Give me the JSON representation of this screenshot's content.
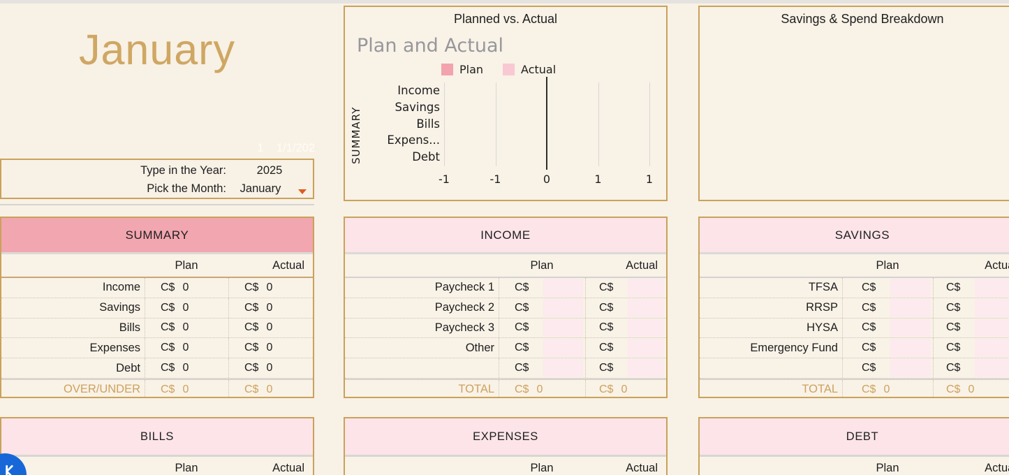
{
  "window": {
    "month_title": "January",
    "faint_date": "1 1/1/202"
  },
  "controls": {
    "year_label": "Type in the Year:",
    "year_value": "2025",
    "month_label": "Pick the Month:",
    "month_value": "January"
  },
  "tables": {
    "summary": {
      "title": "SUMMARY",
      "col_plan": "Plan",
      "col_actual": "Actual",
      "rows": [
        {
          "label": "Income",
          "plan_cur": "C$",
          "plan_val": "0",
          "act_cur": "C$",
          "act_val": "0"
        },
        {
          "label": "Savings",
          "plan_cur": "C$",
          "plan_val": "0",
          "act_cur": "C$",
          "act_val": "0"
        },
        {
          "label": "Bills",
          "plan_cur": "C$",
          "plan_val": "0",
          "act_cur": "C$",
          "act_val": "0"
        },
        {
          "label": "Expenses",
          "plan_cur": "C$",
          "plan_val": "0",
          "act_cur": "C$",
          "act_val": "0"
        },
        {
          "label": "Debt",
          "plan_cur": "C$",
          "plan_val": "0",
          "act_cur": "C$",
          "act_val": "0"
        }
      ],
      "footer_rows": [
        {
          "label": "OVER/UNDER",
          "plan_cur": "C$",
          "plan_val": "0",
          "act_cur": "C$",
          "act_val": "0"
        }
      ]
    },
    "income": {
      "title": "INCOME",
      "col_plan": "Plan",
      "col_actual": "Actual",
      "rows": [
        {
          "label": "Paycheck 1",
          "plan_cur": "C$",
          "plan_val": "",
          "act_cur": "C$",
          "act_val": ""
        },
        {
          "label": "Paycheck 2",
          "plan_cur": "C$",
          "plan_val": "",
          "act_cur": "C$",
          "act_val": ""
        },
        {
          "label": "Paycheck 3",
          "plan_cur": "C$",
          "plan_val": "",
          "act_cur": "C$",
          "act_val": ""
        },
        {
          "label": "Other",
          "plan_cur": "C$",
          "plan_val": "",
          "act_cur": "C$",
          "act_val": ""
        },
        {
          "label": "",
          "plan_cur": "C$",
          "plan_val": "",
          "act_cur": "C$",
          "act_val": ""
        }
      ],
      "footer_rows": [
        {
          "label": "TOTAL",
          "plan_cur": "C$",
          "plan_val": "0",
          "act_cur": "C$",
          "act_val": "0"
        }
      ]
    },
    "savings": {
      "title": "SAVINGS",
      "col_plan": "Plan",
      "col_actual": "Actual",
      "rows": [
        {
          "label": "TFSA",
          "plan_cur": "C$",
          "plan_val": "",
          "act_cur": "C$",
          "act_val": ""
        },
        {
          "label": "RRSP",
          "plan_cur": "C$",
          "plan_val": "",
          "act_cur": "C$",
          "act_val": ""
        },
        {
          "label": "HYSA",
          "plan_cur": "C$",
          "plan_val": "",
          "act_cur": "C$",
          "act_val": ""
        },
        {
          "label": "Emergency Fund",
          "plan_cur": "C$",
          "plan_val": "",
          "act_cur": "C$",
          "act_val": ""
        },
        {
          "label": "",
          "plan_cur": "C$",
          "plan_val": "",
          "act_cur": "C$",
          "act_val": ""
        }
      ],
      "footer_rows": [
        {
          "label": "TOTAL",
          "plan_cur": "C$",
          "plan_val": "0",
          "act_cur": "C$",
          "act_val": "0"
        }
      ]
    },
    "bills": {
      "title": "BILLS",
      "col_plan": "Plan",
      "col_actual": "Actual"
    },
    "expenses": {
      "title": "EXPENSES",
      "col_plan": "Plan",
      "col_actual": "Actual"
    },
    "debt": {
      "title": "DEBT",
      "col_plan": "Plan",
      "col_actual": "Actual"
    }
  },
  "chart_data": [
    {
      "type": "bar",
      "orientation": "horizontal",
      "title": "Planned vs. Actual",
      "chart_title": "Plan and Actual",
      "axis_title": "SUMMARY",
      "categories": [
        "Income",
        "Savings",
        "Bills",
        "Expenses",
        "Debt"
      ],
      "category_labels_displayed": [
        "Income",
        "Savings",
        "Bills",
        "Expens...",
        "Debt"
      ],
      "series": [
        {
          "name": "Plan",
          "color": "#f2a3ae",
          "values": [
            0,
            0,
            0,
            0,
            0
          ]
        },
        {
          "name": "Actual",
          "color": "#f8c9d3",
          "values": [
            0,
            0,
            0,
            0,
            0
          ]
        }
      ],
      "x_tick_labels": [
        "-1",
        "-1",
        "0",
        "1",
        "1"
      ],
      "xlim": [
        -1,
        1
      ],
      "legend_position": "top",
      "grid": "vertical"
    },
    {
      "type": "empty",
      "title": "Savings & Spend Breakdown",
      "series": [],
      "note": "chart area empty - no data plotted"
    }
  ],
  "colors": {
    "background_cream": "#f8f1e6",
    "gold_border": "#c9a25a",
    "gold_text": "#cfa763",
    "total_gold_text": "#cda25d",
    "summary_header_pink": "#f2a6b0",
    "section_header_pink": "#fce4e9",
    "plan_input_pink": "#fceaee",
    "dropdown_arrow_orange": "#df5b20",
    "fab_blue": "#1767d8",
    "zero_axis_line": "#2e2e2e"
  }
}
